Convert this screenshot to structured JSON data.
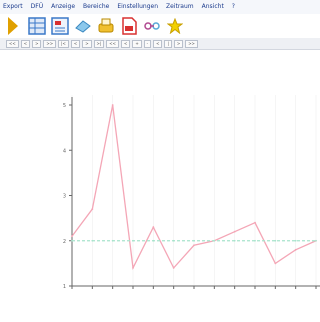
{
  "menubar": {
    "items": [
      "Export",
      "DFÜ",
      "Anzeige",
      "Bereiche",
      "Einstellungen",
      "Zeitraum",
      "Ansicht",
      "?"
    ]
  },
  "toolbar": {
    "buttons": [
      {
        "name": "arrow-icon",
        "color": "#e0a000"
      },
      {
        "name": "table-icon",
        "color": "#3a78c8"
      },
      {
        "name": "report-icon",
        "color": "#3a78c8"
      },
      {
        "name": "eraser-icon",
        "color": "#58a8d8"
      },
      {
        "name": "printer-icon",
        "color": "#d8a000"
      },
      {
        "name": "pdf-icon",
        "color": "#d83030"
      },
      {
        "name": "link-icon",
        "color": "#b04890"
      },
      {
        "name": "star-icon",
        "color": "#e8c000"
      }
    ]
  },
  "navbar": {
    "buttons": [
      "<<",
      "<",
      ">",
      ">>",
      "|<",
      "<",
      ">",
      ">|",
      "<<",
      "<",
      "+",
      "-",
      "<",
      "|",
      ">",
      ">>"
    ]
  },
  "chart_data": {
    "type": "line",
    "title": "",
    "xlabel": "",
    "ylabel": "",
    "ylim": [
      1,
      5
    ],
    "yticks": [
      1,
      2,
      3,
      4,
      5
    ],
    "grid": true,
    "series": [
      {
        "values": [
          2.1,
          2.7,
          5.0,
          1.4,
          2.3,
          1.4,
          1.9,
          2.0,
          2.2,
          2.4,
          1.5,
          1.8,
          2.0
        ],
        "color": "#f4a6b6"
      },
      {
        "values": [
          2.0,
          2.0,
          2.0,
          2.0,
          2.0,
          2.0,
          2.0,
          2.0,
          2.0,
          2.0,
          2.0,
          2.0,
          2.0
        ],
        "color": "#a8e4cc",
        "dashed": true
      }
    ],
    "colors": {
      "axis": "#666666",
      "grid": "#eeeeee"
    }
  }
}
